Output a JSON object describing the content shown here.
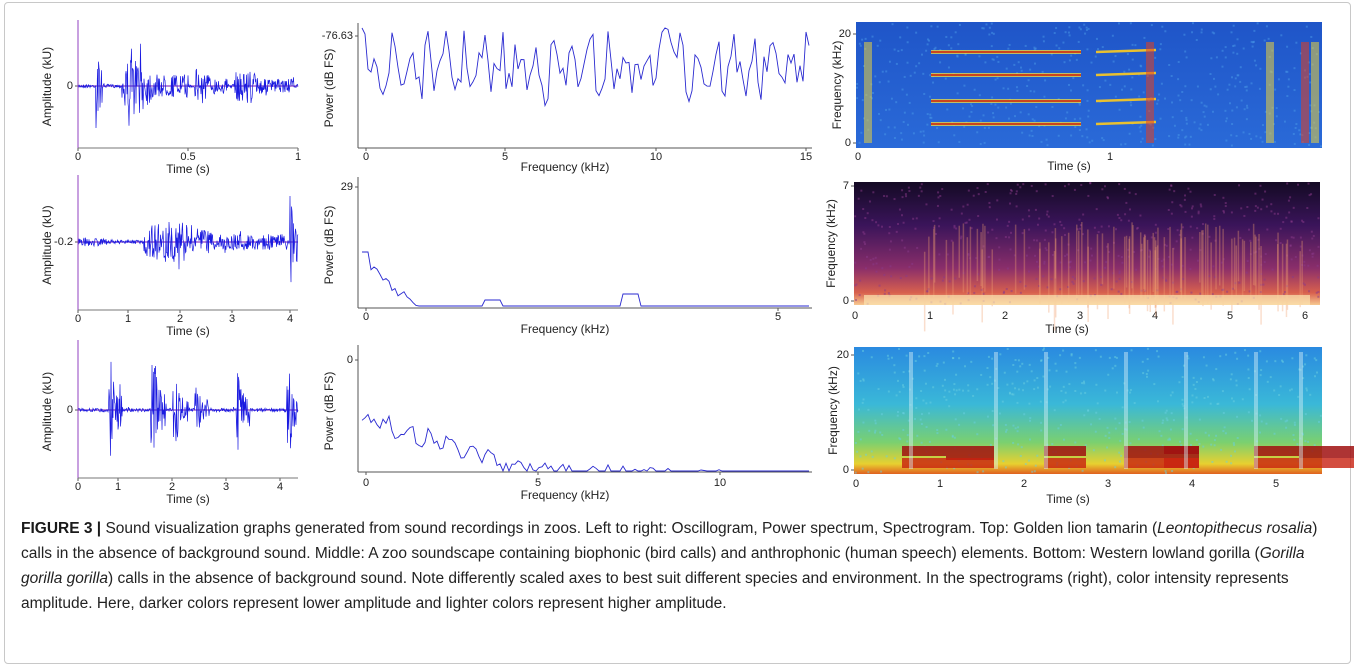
{
  "panels": [
    {
      "ylabel": "Amplitude (kU)",
      "xlabel": "Time (s)",
      "xticks": [
        0,
        0.5,
        1
      ],
      "yticks": [
        0
      ]
    },
    {
      "ylabel": "Power (dB FS)",
      "xlabel": "Frequency (kHz)",
      "xticks": [
        0,
        5,
        10,
        15
      ],
      "yticks": [
        -76.63
      ]
    },
    {
      "ylabel": "Frequency (kHz)",
      "xlabel": "Time (s)",
      "xticks": [
        0,
        1
      ],
      "yticks": [
        20,
        0
      ]
    },
    {
      "ylabel": "Amplitude (kU)",
      "xlabel": "Time (s)",
      "xticks": [
        0,
        1,
        2,
        3,
        4
      ],
      "yticks": [
        -0.2
      ]
    },
    {
      "ylabel": "Power (dB FS)",
      "xlabel": "Frequency (kHz)",
      "xticks": [
        0,
        5
      ],
      "yticks": [
        29
      ]
    },
    {
      "ylabel": "Frequency (kHz)",
      "xlabel": "Time (s)",
      "xticks": [
        0,
        1,
        2,
        3,
        4,
        5,
        6
      ],
      "yticks": [
        7,
        0
      ]
    },
    {
      "ylabel": "Amplitude (kU)",
      "xlabel": "Time (s)",
      "xticks": [
        0,
        1,
        2,
        3,
        4
      ],
      "yticks": [
        0
      ]
    },
    {
      "ylabel": "Power (dB FS)",
      "xlabel": "Frequency (kHz)",
      "xticks": [
        0,
        5,
        10
      ],
      "yticks": [
        0
      ]
    },
    {
      "ylabel": "Frequency (kHz)",
      "xlabel": "Time (s)",
      "xticks": [
        0,
        1,
        2,
        3,
        4,
        5
      ],
      "yticks": [
        20,
        0
      ]
    }
  ],
  "caption": {
    "label": "FIGURE 3 |",
    "parts": [
      " Sound visualization graphs generated from sound recordings in zoos. Left to right: Oscillogram, Power spectrum, Spectrogram. Top: Golden lion tamarin (",
      "Leontopithecus rosalia",
      ") calls in the absence of background sound. Middle: A zoo soundscape containing biophonic (bird calls) and anthrophonic (human speech) elements. Bottom: Western lowland gorilla (",
      "Gorilla gorilla gorilla",
      ") calls in the absence of background sound. Note differently scaled axes to best suit different species and environment. In the spectrograms (right), color intensity represents amplitude. Here, darker colors represent lower amplitude and lighter colors represent higher amplitude."
    ]
  }
}
